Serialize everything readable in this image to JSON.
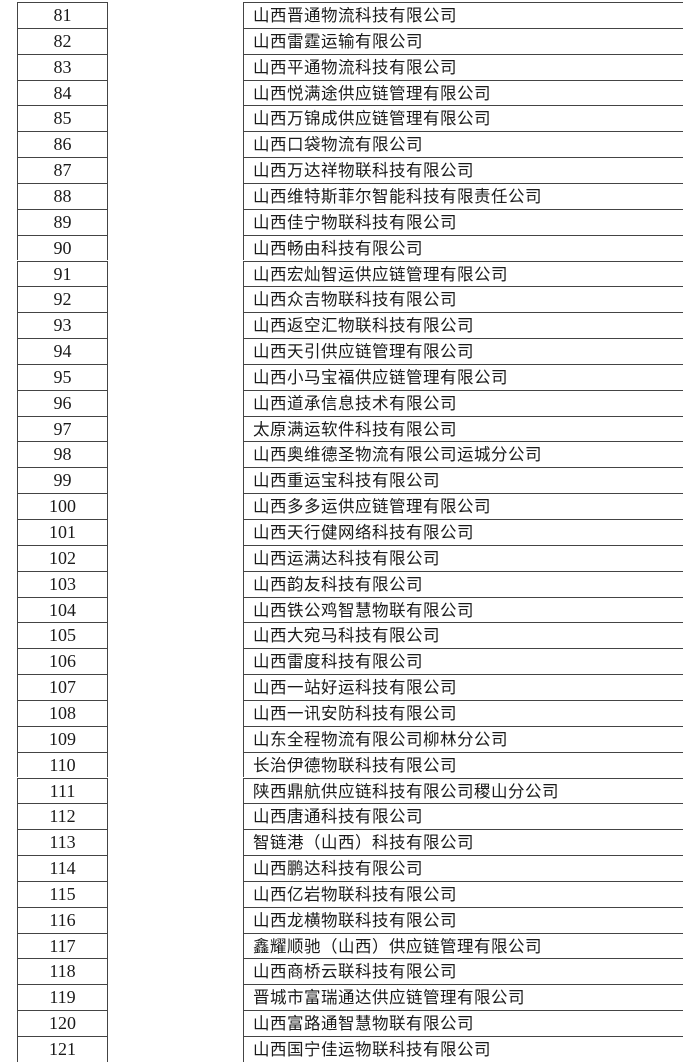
{
  "rows": [
    {
      "no": "81",
      "name": "山西晋通物流科技有限公司"
    },
    {
      "no": "82",
      "name": "山西雷霆运输有限公司"
    },
    {
      "no": "83",
      "name": "山西平通物流科技有限公司"
    },
    {
      "no": "84",
      "name": "山西悦满途供应链管理有限公司"
    },
    {
      "no": "85",
      "name": "山西万锦成供应链管理有限公司"
    },
    {
      "no": "86",
      "name": "山西口袋物流有限公司"
    },
    {
      "no": "87",
      "name": "山西万达祥物联科技有限公司"
    },
    {
      "no": "88",
      "name": "山西维特斯菲尔智能科技有限责任公司"
    },
    {
      "no": "89",
      "name": "山西佳宁物联科技有限公司"
    },
    {
      "no": "90",
      "name": "山西畅由科技有限公司"
    },
    {
      "no": "91",
      "name": "山西宏灿智运供应链管理有限公司"
    },
    {
      "no": "92",
      "name": "山西众吉物联科技有限公司"
    },
    {
      "no": "93",
      "name": "山西返空汇物联科技有限公司"
    },
    {
      "no": "94",
      "name": "山西天引供应链管理有限公司"
    },
    {
      "no": "95",
      "name": "山西小马宝福供应链管理有限公司"
    },
    {
      "no": "96",
      "name": "山西道承信息技术有限公司"
    },
    {
      "no": "97",
      "name": "太原满运软件科技有限公司"
    },
    {
      "no": "98",
      "name": "山西奥维德圣物流有限公司运城分公司"
    },
    {
      "no": "99",
      "name": "山西重运宝科技有限公司"
    },
    {
      "no": "100",
      "name": "山西多多运供应链管理有限公司"
    },
    {
      "no": "101",
      "name": "山西天行健网络科技有限公司"
    },
    {
      "no": "102",
      "name": "山西运满达科技有限公司"
    },
    {
      "no": "103",
      "name": "山西韵友科技有限公司"
    },
    {
      "no": "104",
      "name": "山西铁公鸡智慧物联有限公司"
    },
    {
      "no": "105",
      "name": "山西大宛马科技有限公司"
    },
    {
      "no": "106",
      "name": "山西雷度科技有限公司"
    },
    {
      "no": "107",
      "name": "山西一站好运科技有限公司"
    },
    {
      "no": "108",
      "name": "山西一讯安防科技有限公司"
    },
    {
      "no": "109",
      "name": "山东全程物流有限公司柳林分公司"
    },
    {
      "no": "110",
      "name": "长治伊德物联科技有限公司"
    },
    {
      "no": "111",
      "name": "陕西鼎航供应链科技有限公司稷山分公司"
    },
    {
      "no": "112",
      "name": "山西唐通科技有限公司"
    },
    {
      "no": "113",
      "name": "智链港（山西）科技有限公司"
    },
    {
      "no": "114",
      "name": "山西鹏达科技有限公司"
    },
    {
      "no": "115",
      "name": "山西亿岩物联科技有限公司"
    },
    {
      "no": "116",
      "name": "山西龙横物联科技有限公司"
    },
    {
      "no": "117",
      "name": "鑫耀顺驰（山西）供应链管理有限公司"
    },
    {
      "no": "118",
      "name": "山西商桥云联科技有限公司"
    },
    {
      "no": "119",
      "name": "晋城市富瑞通达供应链管理有限公司"
    },
    {
      "no": "120",
      "name": "山西富路通智慧物联有限公司"
    },
    {
      "no": "121",
      "name": "山西国宁佳运物联科技有限公司"
    }
  ]
}
